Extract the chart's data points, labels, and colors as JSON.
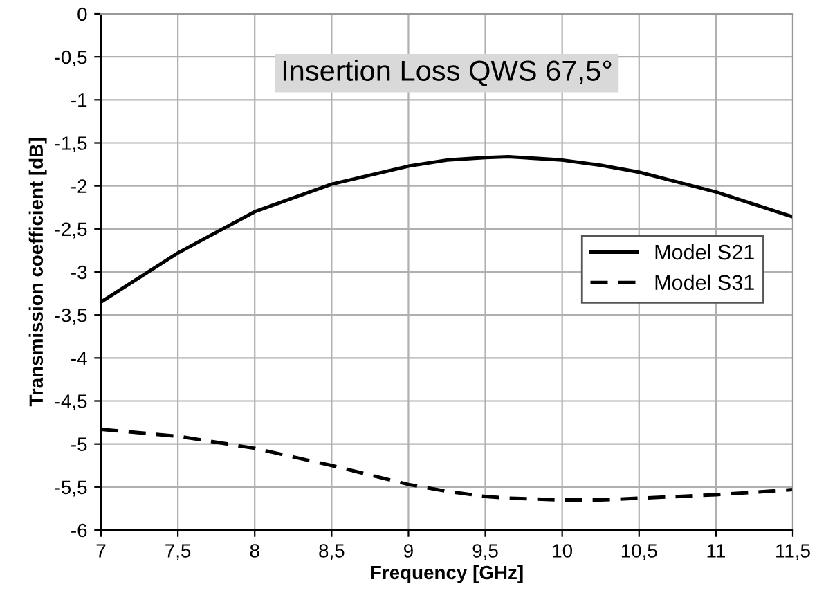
{
  "chart_data": {
    "type": "line",
    "title": "Insertion Loss QWS 67,5°",
    "xlabel": "Frequency [GHz]",
    "ylabel": "Transmission coefficient [dB]",
    "x": [
      7,
      7.5,
      8,
      8.5,
      9,
      9.25,
      9.5,
      9.65,
      10,
      10.25,
      10.5,
      11,
      11.5
    ],
    "series": [
      {
        "name": "Model S21",
        "color": "#000000",
        "line_style": "solid",
        "values": [
          -3.35,
          -2.78,
          -2.3,
          -1.98,
          -1.77,
          -1.7,
          -1.67,
          -1.66,
          -1.7,
          -1.76,
          -1.84,
          -2.07,
          -2.36
        ]
      },
      {
        "name": "Model S31",
        "color": "#000000",
        "line_style": "dashed",
        "values": [
          -4.83,
          -4.91,
          -5.05,
          -5.25,
          -5.47,
          -5.55,
          -5.61,
          -5.63,
          -5.65,
          -5.65,
          -5.63,
          -5.59,
          -5.53
        ]
      }
    ],
    "xlim": [
      7,
      11.5
    ],
    "ylim": [
      -6,
      0
    ],
    "xticks": [
      7,
      {
        "value": 7.5,
        "label": "7,5"
      },
      8,
      {
        "value": 8.5,
        "label": "8,5"
      },
      9,
      {
        "value": 9.5,
        "label": "9,5"
      },
      10,
      {
        "value": 10.5,
        "label": "10,5"
      },
      11,
      {
        "value": 11.5,
        "label": "11,5"
      }
    ],
    "yticks": [
      0,
      {
        "value": -0.5,
        "label": "-0,5"
      },
      -1,
      {
        "value": -1.5,
        "label": "-1,5"
      },
      -2,
      {
        "value": -2.5,
        "label": "-2,5"
      },
      -3,
      {
        "value": -3.5,
        "label": "-3,5"
      },
      -4,
      {
        "value": -4.5,
        "label": "-4,5"
      },
      -5,
      {
        "value": -5.5,
        "label": "-5,5"
      },
      -6
    ],
    "grid": true,
    "legend": "right",
    "marker": "none"
  }
}
